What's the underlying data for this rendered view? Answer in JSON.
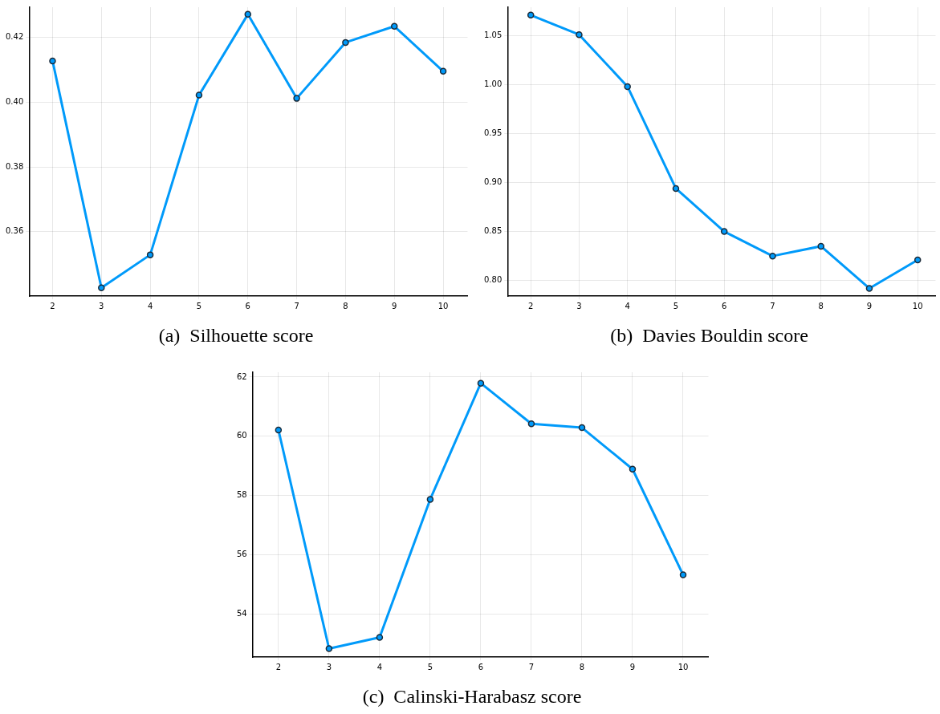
{
  "chart_data": [
    {
      "type": "line",
      "title": "(a)  Silhouette score",
      "x": [
        2,
        3,
        4,
        5,
        6,
        7,
        8,
        9,
        10
      ],
      "values": [
        0.4128,
        0.3426,
        0.3528,
        0.4022,
        0.4272,
        0.4012,
        0.4185,
        0.4235,
        0.4096
      ],
      "color": "#009afa",
      "marker": "circle",
      "line_style": "solid",
      "grid": true,
      "legend": false,
      "xlim": [
        1.52,
        10.5
      ],
      "xticks": [
        2,
        3,
        4,
        5,
        6,
        7,
        8,
        9,
        10
      ],
      "ylim": [
        0.34,
        0.4294
      ],
      "yticks": [
        {
          "value": 0.36,
          "label": "0.36"
        },
        {
          "value": 0.38,
          "label": "0.38"
        },
        {
          "value": 0.4,
          "label": "0.40"
        },
        {
          "value": 0.42,
          "label": "0.42"
        }
      ]
    },
    {
      "type": "line",
      "title": "(b)  Davies Bouldin score",
      "x": [
        2,
        3,
        4,
        5,
        6,
        7,
        8,
        9,
        10
      ],
      "values": [
        1.071,
        1.051,
        0.998,
        0.894,
        0.85,
        0.825,
        0.835,
        0.792,
        0.821
      ],
      "color": "#009afa",
      "marker": "circle",
      "line_style": "solid",
      "grid": true,
      "legend": false,
      "xlim": [
        1.52,
        10.37
      ],
      "xticks": [
        2,
        3,
        4,
        5,
        6,
        7,
        8,
        9,
        10
      ],
      "ylim": [
        0.784,
        1.079
      ],
      "yticks": [
        {
          "value": 0.8,
          "label": "0.80"
        },
        {
          "value": 0.85,
          "label": "0.85"
        },
        {
          "value": 0.9,
          "label": "0.90"
        },
        {
          "value": 0.95,
          "label": "0.95"
        },
        {
          "value": 1,
          "label": "1.00"
        },
        {
          "value": 1.05,
          "label": "1.05"
        }
      ]
    },
    {
      "type": "line",
      "title": "(c)  Calinski-Harabasz score",
      "x": [
        2,
        3,
        4,
        5,
        6,
        7,
        8,
        9,
        10
      ],
      "values": [
        60.21,
        52.83,
        53.21,
        57.87,
        61.79,
        60.42,
        60.29,
        58.89,
        55.32
      ],
      "color": "#009afa",
      "marker": "circle",
      "line_style": "solid",
      "grid": true,
      "legend": false,
      "xlim": [
        1.49,
        10.5
      ],
      "xticks": [
        2,
        3,
        4,
        5,
        6,
        7,
        8,
        9,
        10
      ],
      "ylim": [
        52.54,
        62.16
      ],
      "yticks": [
        54,
        56,
        58,
        60,
        62
      ]
    }
  ]
}
